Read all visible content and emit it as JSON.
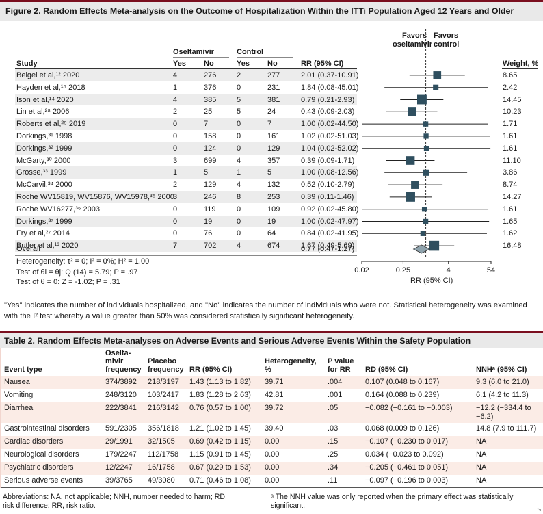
{
  "figure_title": "Figure 2. Random Effects Meta-analysis on the Outcome of Hospitalization Within the ITTi Population Aged 12 Years and Older",
  "forest": {
    "favors_left_l1": "Favors",
    "favors_left_l2": "oseltamivir",
    "favors_right_l1": "Favors",
    "favors_right_l2": "control",
    "group_oseltamivir": "Oseltamivir",
    "group_control": "Control",
    "col_study": "Study",
    "col_yes": "Yes",
    "col_no": "No",
    "col_rr": "RR (95% CI)",
    "col_weight": "Weight, %",
    "overall_label": "Overall",
    "overall_rr_text": "0.77 (0.47-1.27)",
    "heterogeneity": "Heterogeneity: τ² = 0; I² = 0%; H² = 1.00",
    "test_theta_i": "Test of θi = θj: Q (14) = 5.79; P = .97",
    "test_theta_0": "Test of θ = 0: Z = -1.02; P = .31",
    "xaxis_label": "RR (95% CI)",
    "xticks": [
      "0.02",
      "0.25",
      "4",
      "54"
    ]
  },
  "chart_data": {
    "type": "forest",
    "x_scale": "log",
    "xlim": [
      0.02,
      54
    ],
    "xticks": [
      0.02,
      0.25,
      4,
      54
    ],
    "xlabel": "RR (95% CI)",
    "null_line": 1,
    "studies": [
      {
        "study": "Beigel et al,¹² 2020",
        "o_yes": "4",
        "o_no": "276",
        "c_yes": "2",
        "c_no": "277",
        "rr_text": "2.01 (0.37-10.91)",
        "rr": 2.01,
        "lo": 0.37,
        "hi": 10.91,
        "weight": "8.65"
      },
      {
        "study": "Hayden et al,¹⁵ 2018",
        "o_yes": "1",
        "o_no": "376",
        "c_yes": "0",
        "c_no": "231",
        "rr_text": "1.84 (0.08-45.01)",
        "rr": 1.84,
        "lo": 0.08,
        "hi": 45.01,
        "weight": "2.42"
      },
      {
        "study": "Ison et al,¹⁴ 2020",
        "o_yes": "4",
        "o_no": "385",
        "c_yes": "5",
        "c_no": "381",
        "rr_text": "0.79 (0.21-2.93)",
        "rr": 0.79,
        "lo": 0.21,
        "hi": 2.93,
        "weight": "14.45"
      },
      {
        "study": "Lin et al,²⁸ 2006",
        "o_yes": "2",
        "o_no": "25",
        "c_yes": "5",
        "c_no": "24",
        "rr_text": "0.43 (0.09-2.03)",
        "rr": 0.43,
        "lo": 0.09,
        "hi": 2.03,
        "weight": "10.23"
      },
      {
        "study": "Roberts et al,²⁹ 2019",
        "o_yes": "0",
        "o_no": "7",
        "c_yes": "0",
        "c_no": "7",
        "rr_text": "1.00 (0.02-44.50)",
        "rr": 1.0,
        "lo": 0.02,
        "hi": 44.5,
        "weight": "1.71"
      },
      {
        "study": "Dorkings,³¹ 1998",
        "o_yes": "0",
        "o_no": "158",
        "c_yes": "0",
        "c_no": "161",
        "rr_text": "1.02 (0.02-51.03)",
        "rr": 1.02,
        "lo": 0.02,
        "hi": 51.03,
        "weight": "1.61"
      },
      {
        "study": "Dorkings,³² 1999",
        "o_yes": "0",
        "o_no": "124",
        "c_yes": "0",
        "c_no": "129",
        "rr_text": "1.04 (0.02-52.02)",
        "rr": 1.04,
        "lo": 0.02,
        "hi": 52.02,
        "weight": "1.61"
      },
      {
        "study": "McGarty,³⁰ 2000",
        "o_yes": "3",
        "o_no": "699",
        "c_yes": "4",
        "c_no": "357",
        "rr_text": "0.39 (0.09-1.71)",
        "rr": 0.39,
        "lo": 0.09,
        "hi": 1.71,
        "weight": "11.10"
      },
      {
        "study": "Grosse,³³ 1999",
        "o_yes": "1",
        "o_no": "5",
        "c_yes": "1",
        "c_no": "5",
        "rr_text": "1.00 (0.08-12.56)",
        "rr": 1.0,
        "lo": 0.08,
        "hi": 12.56,
        "weight": "3.86"
      },
      {
        "study": "McCarvil,³⁴ 2000",
        "o_yes": "2",
        "o_no": "129",
        "c_yes": "4",
        "c_no": "132",
        "rr_text": "0.52 (0.10-2.79)",
        "rr": 0.52,
        "lo": 0.1,
        "hi": 2.79,
        "weight": "8.74"
      },
      {
        "study": "Roche WV15819, WV15876, WV15978,³⁵ 2000",
        "o_yes": "3",
        "o_no": "246",
        "c_yes": "8",
        "c_no": "253",
        "rr_text": "0.39 (0.11-1.46)",
        "rr": 0.39,
        "lo": 0.11,
        "hi": 1.46,
        "weight": "14.27"
      },
      {
        "study": "Roche WV16277,³⁶ 2003",
        "o_yes": "0",
        "o_no": "119",
        "c_yes": "0",
        "c_no": "109",
        "rr_text": "0.92 (0.02-45.80)",
        "rr": 0.92,
        "lo": 0.02,
        "hi": 45.8,
        "weight": "1.61"
      },
      {
        "study": "Dorkings,³⁷ 1999",
        "o_yes": "0",
        "o_no": "19",
        "c_yes": "0",
        "c_no": "19",
        "rr_text": "1.00 (0.02-47.97)",
        "rr": 1.0,
        "lo": 0.02,
        "hi": 47.97,
        "weight": "1.65"
      },
      {
        "study": "Fry et al,²⁷ 2014",
        "o_yes": "0",
        "o_no": "76",
        "c_yes": "0",
        "c_no": "64",
        "rr_text": "0.84 (0.02-41.95)",
        "rr": 0.84,
        "lo": 0.02,
        "hi": 41.95,
        "weight": "1.62"
      },
      {
        "study": "Butler et al,¹³ 2020",
        "o_yes": "7",
        "o_no": "702",
        "c_yes": "4",
        "c_no": "674",
        "rr_text": "1.67 (0.49-5.69)",
        "rr": 1.67,
        "lo": 0.49,
        "hi": 5.69,
        "weight": "16.48"
      }
    ],
    "overall": {
      "rr": 0.77,
      "lo": 0.47,
      "hi": 1.27
    }
  },
  "figure_note": "\"Yes\" indicates the number of individuals hospitalized, and \"No\" indicates the number of individuals who were not. Statistical heterogeneity was examined with the I² test whereby a value greater than 50% was considered statistically significant heterogeneity.",
  "table_title": "Table 2. Random Effects Meta-analyses on Adverse Events and Serious Adverse Events Within the Safety Population",
  "table": {
    "headers": {
      "event": "Event type",
      "osel_l1": "Oselta-",
      "osel_l2": "mivir",
      "osel_l3": "frequency",
      "plac_l1": "Placebo",
      "plac_l2": "frequency",
      "rr": "RR (95% CI)",
      "het": "Heterogeneity, %",
      "p_l1": "P value",
      "p_l2": "for RR",
      "rd": "RD (95% CI)",
      "nnh": "NNHᵃ (95% CI)"
    },
    "rows": [
      {
        "event": "Nausea",
        "osel": "374/3892",
        "plac": "218/3197",
        "rr": "1.43 (1.13 to 1.82)",
        "het": "39.71",
        "p": ".004",
        "rd": "0.107 (0.048 to 0.167)",
        "nnh": "9.3 (6.0 to 21.0)"
      },
      {
        "event": "Vomiting",
        "osel": "248/3120",
        "plac": "103/2417",
        "rr": "1.83 (1.28 to 2.63)",
        "het": "42.81",
        "p": ".001",
        "rd": "0.164 (0.088 to 0.239)",
        "nnh": "6.1 (4.2 to 11.3)"
      },
      {
        "event": "Diarrhea",
        "osel": "222/3841",
        "plac": "216/3142",
        "rr": "0.76 (0.57 to 1.00)",
        "het": "39.72",
        "p": ".05",
        "rd": "−0.082 (−0.161 to −0.003)",
        "nnh": "−12.2 (−334.4 to −6.2)"
      },
      {
        "event": "Gastrointestinal disorders",
        "osel": "591/2305",
        "plac": "356/1818",
        "rr": "1.21 (1.02 to 1.45)",
        "het": "39.40",
        "p": ".03",
        "rd": "0.068 (0.009 to 0.126)",
        "nnh": "14.8 (7.9 to 111.7)"
      },
      {
        "event": "Cardiac disorders",
        "osel": "29/1991",
        "plac": "32/1505",
        "rr": "0.69 (0.42 to 1.15)",
        "het": "0.00",
        "p": ".15",
        "rd": "−0.107 (−0.230 to 0.017)",
        "nnh": "NA"
      },
      {
        "event": "Neurological disorders",
        "osel": "179/2247",
        "plac": "112/1758",
        "rr": "1.15 (0.91 to 1.45)",
        "het": "0.00",
        "p": ".25",
        "rd": "0.034 (−0.023 to 0.092)",
        "nnh": "NA"
      },
      {
        "event": "Psychiatric disorders",
        "osel": "12/2247",
        "plac": "16/1758",
        "rr": "0.67 (0.29 to 1.53)",
        "het": "0.00",
        "p": ".34",
        "rd": "−0.205 (−0.461 to 0.051)",
        "nnh": "NA"
      },
      {
        "event": "Serious adverse events",
        "osel": "39/3765",
        "plac": "49/3080",
        "rr": "0.71 (0.46 to 1.08)",
        "het": "0.00",
        "p": ".11",
        "rd": "−0.097 (−0.196 to 0.003)",
        "nnh": "NA"
      }
    ]
  },
  "footnote_left": "Abbreviations: NA, not applicable; NNH, number needed to harm; RD, risk difference; RR, risk ratio.",
  "footnote_right": "ᵃ The NNH value was only reported when the primary effect was statistically significant.",
  "colors": {
    "accent": "#7a0e1e",
    "marker": "#2f4f5f",
    "overall_diamond": "#8fa3ad",
    "stripe": "#ececec",
    "table_stripe": "#fbece6"
  }
}
